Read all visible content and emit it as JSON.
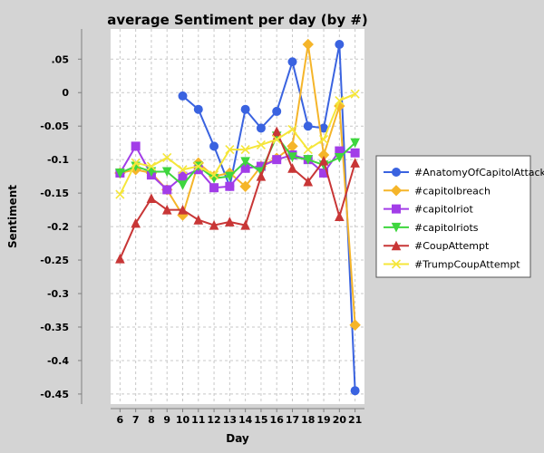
{
  "chart_data": {
    "type": "line",
    "title": "average Sentiment per day (by #)",
    "xlabel": "Day",
    "ylabel": "Sentiment",
    "x": [
      6,
      7,
      8,
      9,
      10,
      11,
      12,
      13,
      14,
      15,
      16,
      17,
      18,
      19,
      20,
      21
    ],
    "x_tick_labels": [
      "6",
      "7",
      "8",
      "9",
      "10",
      "11",
      "12",
      "13",
      "14",
      "15",
      "16",
      "17",
      "18",
      "19",
      "20",
      "21"
    ],
    "xlim": [
      5.4,
      21.6
    ],
    "ylim": [
      -0.465,
      0.095
    ],
    "y_ticks": [
      0.05,
      0,
      -0.05,
      -0.1,
      -0.15,
      -0.2,
      -0.25,
      -0.3,
      -0.35,
      -0.4,
      -0.45
    ],
    "y_tick_labels": [
      ".05",
      "0",
      "-0.05",
      "-0.1",
      "-0.15",
      "-0.2",
      "-0.25",
      "-0.3",
      "-0.35",
      "-0.4",
      "-0.45"
    ],
    "grid": true,
    "legend_position": "right",
    "series": [
      {
        "name": "#AnatomyOfCapitolAttack",
        "color": "#3a63e0",
        "marker": "circle",
        "x": [
          10,
          11,
          12,
          13,
          14,
          15,
          16,
          17,
          18,
          19,
          20,
          21
        ],
        "values": [
          -0.005,
          -0.025,
          -0.08,
          -0.14,
          -0.025,
          -0.053,
          -0.028,
          0.046,
          -0.05,
          -0.053,
          0.072,
          -0.445
        ]
      },
      {
        "name": "#capitolbreach",
        "color": "#f5b52a",
        "marker": "diamond",
        "x": [
          6,
          7,
          8,
          9,
          10,
          11,
          12,
          13,
          14,
          15,
          16,
          17,
          18,
          19,
          20,
          21
        ],
        "values": [
          -0.12,
          -0.115,
          -0.12,
          -0.145,
          -0.183,
          -0.105,
          -0.125,
          -0.12,
          -0.14,
          -0.11,
          -0.098,
          -0.08,
          0.072,
          -0.093,
          -0.02,
          -0.347
        ]
      },
      {
        "name": "#capitolriot",
        "color": "#a23de8",
        "marker": "square",
        "x": [
          6,
          7,
          8,
          9,
          10,
          11,
          12,
          13,
          14,
          15,
          16,
          17,
          18,
          19,
          20,
          21
        ],
        "values": [
          -0.12,
          -0.08,
          -0.123,
          -0.145,
          -0.125,
          -0.115,
          -0.142,
          -0.14,
          -0.113,
          -0.11,
          -0.1,
          -0.093,
          -0.1,
          -0.12,
          -0.087,
          -0.09
        ]
      },
      {
        "name": "#capitolriots",
        "color": "#3ed63e",
        "marker": "triangle-down",
        "x": [
          6,
          7,
          8,
          9,
          10,
          11,
          12,
          13,
          14,
          15,
          16,
          17,
          18,
          19,
          20,
          21
        ],
        "values": [
          -0.12,
          -0.11,
          -0.118,
          -0.118,
          -0.138,
          -0.11,
          -0.128,
          -0.125,
          -0.103,
          -0.118,
          -0.065,
          -0.096,
          -0.1,
          -0.108,
          -0.097,
          -0.075
        ]
      },
      {
        "name": "#CoupAttempt",
        "color": "#c83636",
        "marker": "triangle-up",
        "x": [
          6,
          7,
          8,
          9,
          10,
          11,
          12,
          13,
          14,
          15,
          16,
          17,
          18,
          19,
          20,
          21
        ],
        "values": [
          -0.248,
          -0.195,
          -0.158,
          -0.175,
          -0.175,
          -0.19,
          -0.198,
          -0.193,
          -0.198,
          -0.125,
          -0.058,
          -0.113,
          -0.133,
          -0.102,
          -0.185,
          -0.105
        ]
      },
      {
        "name": "#TrumpCoupAttempt",
        "color": "#f5e63a",
        "marker": "cross",
        "x": [
          6,
          7,
          8,
          9,
          10,
          11,
          12,
          13,
          14,
          15,
          16,
          17,
          18,
          19,
          20,
          21
        ],
        "values": [
          -0.152,
          -0.105,
          -0.11,
          -0.097,
          -0.115,
          -0.11,
          -0.123,
          -0.085,
          -0.085,
          -0.078,
          -0.07,
          -0.055,
          -0.085,
          -0.07,
          -0.012,
          -0.002
        ]
      }
    ]
  }
}
